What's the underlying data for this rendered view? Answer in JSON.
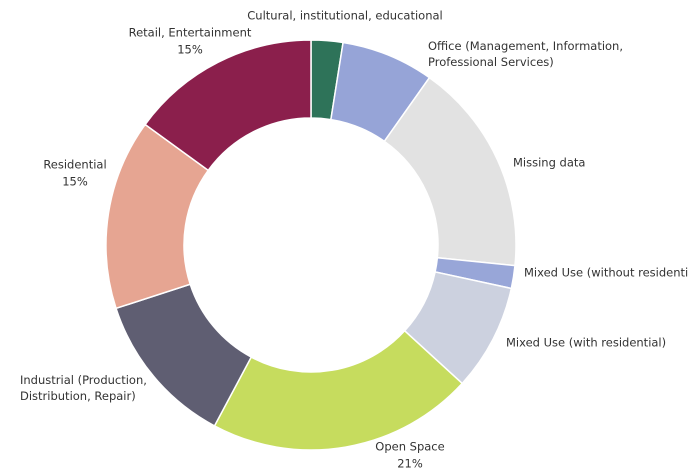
{
  "chart_data": {
    "type": "donut",
    "categories": [
      "Cultural, institutional, educational",
      "Office (Management, Information,\nProfessional Services)",
      "Missing data",
      "Mixed Use (without residential)",
      "Mixed Use (with residential)",
      "Open Space",
      "Industrial (Production,\nDistribution, Repair)",
      "Residential",
      "Retail, Entertainment"
    ],
    "values": [
      2.5,
      7.3,
      16.8,
      1.8,
      8.4,
      21,
      12.2,
      15,
      15
    ],
    "value_labels": [
      null,
      null,
      null,
      null,
      null,
      "21%",
      null,
      "15%",
      "15%"
    ],
    "colors": [
      "#2e7359",
      "#96a4d7",
      "#e2e2e2",
      "#98a6d8",
      "#ccd1df",
      "#c6dc5e",
      "#5f5e72",
      "#e6a592",
      "#8b1f4c"
    ]
  }
}
